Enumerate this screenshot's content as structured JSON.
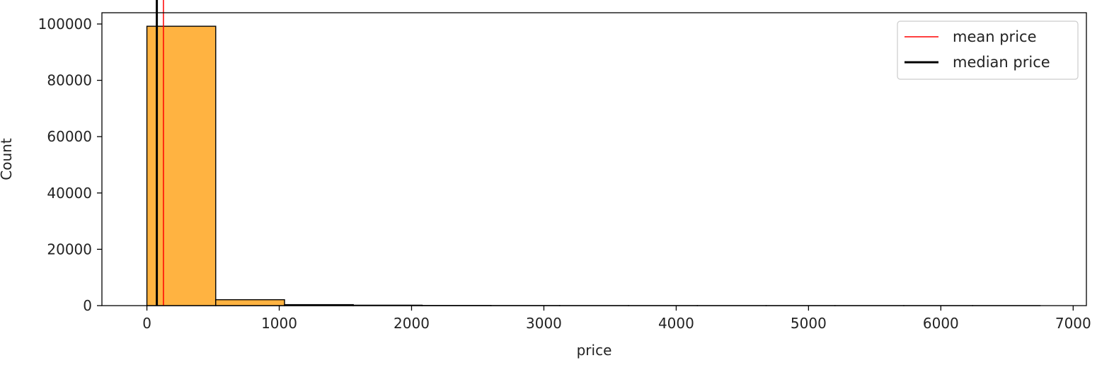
{
  "chart_data": {
    "type": "histogram",
    "xlabel": "price",
    "ylabel": "Count",
    "xlim": [
      -340,
      7100
    ],
    "ylim": [
      0,
      104000
    ],
    "xticks": [
      0,
      1000,
      2000,
      3000,
      4000,
      5000,
      6000,
      7000
    ],
    "yticks": [
      0,
      20000,
      40000,
      60000,
      80000,
      100000
    ],
    "bar_color": "#ffb341",
    "bins": [
      {
        "x0": 0,
        "x1": 520,
        "count": 99200
      },
      {
        "x0": 520,
        "x1": 1040,
        "count": 2100
      },
      {
        "x0": 1040,
        "x1": 1560,
        "count": 350
      },
      {
        "x0": 1560,
        "x1": 2080,
        "count": 150
      },
      {
        "x0": 2080,
        "x1": 2600,
        "count": 60
      },
      {
        "x0": 2600,
        "x1": 3120,
        "count": 30
      },
      {
        "x0": 3120,
        "x1": 3640,
        "count": 15
      },
      {
        "x0": 3640,
        "x1": 4160,
        "count": 8
      },
      {
        "x0": 4160,
        "x1": 4680,
        "count": 5
      },
      {
        "x0": 4680,
        "x1": 5200,
        "count": 3
      },
      {
        "x0": 5200,
        "x1": 5720,
        "count": 2
      },
      {
        "x0": 5720,
        "x1": 6240,
        "count": 1
      },
      {
        "x0": 6240,
        "x1": 6750,
        "count": 1
      }
    ],
    "vlines": [
      {
        "name": "mean price",
        "x": 125,
        "color": "#ff0000",
        "width": 1.5
      },
      {
        "name": "median price",
        "x": 75,
        "color": "#000000",
        "width": 3
      }
    ],
    "legend": {
      "position": "top-right"
    },
    "grid": false
  }
}
